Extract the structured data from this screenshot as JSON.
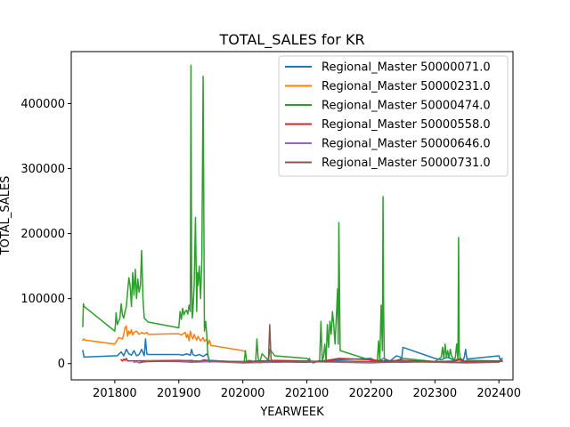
{
  "chart_data": {
    "type": "line",
    "title": "TOTAL_SALES for KR",
    "xlabel": "YEARWEEK",
    "ylabel": "TOTAL_SALES",
    "xlim": [
      201732,
      202422
    ],
    "ylim": [
      -25000,
      480000
    ],
    "xticks": [
      {
        "value": 201800,
        "label": "201800"
      },
      {
        "value": 201900,
        "label": "201900"
      },
      {
        "value": 202000,
        "label": "202000"
      },
      {
        "value": 202100,
        "label": "202100"
      },
      {
        "value": 202200,
        "label": "202200"
      },
      {
        "value": 202300,
        "label": "202300"
      },
      {
        "value": 202400,
        "label": "202400"
      }
    ],
    "yticks": [
      {
        "value": 0,
        "label": "0"
      },
      {
        "value": 100000,
        "label": "100000"
      },
      {
        "value": 200000,
        "label": "200000"
      },
      {
        "value": 300000,
        "label": "300000"
      },
      {
        "value": 400000,
        "label": "400000"
      }
    ],
    "grid": false,
    "legend_position": "top-right",
    "series": [
      {
        "name": "Regional_Master 50000071.0",
        "color": "#1f77b4",
        "x": [
          201750,
          201752,
          201800,
          201804,
          201810,
          201814,
          201818,
          201822,
          201826,
          201830,
          201834,
          201838,
          201842,
          201846,
          201848,
          201850,
          201852,
          201900,
          201906,
          201912,
          201918,
          201920,
          201922,
          201926,
          201932,
          201938,
          201944,
          201946,
          201948,
          201950,
          202000,
          202050,
          202100,
          202104,
          202106,
          202120,
          202150,
          202200,
          202210,
          202220,
          202230,
          202240,
          202246,
          202248,
          202250,
          202300,
          202310,
          202320,
          202330,
          202340,
          202344,
          202346,
          202348,
          202350,
          202400,
          202402,
          202405
        ],
        "y": [
          20000,
          10000,
          12000,
          12000,
          18000,
          12000,
          22000,
          15000,
          13000,
          20000,
          12000,
          14000,
          22000,
          12000,
          38000,
          15000,
          14000,
          14000,
          13000,
          15000,
          13000,
          22000,
          14000,
          12000,
          14000,
          11000,
          15000,
          10000,
          4000,
          5000,
          2000,
          3000,
          2000,
          8000,
          3000,
          4000,
          6000,
          8000,
          3000,
          8000,
          4000,
          12000,
          10000,
          6000,
          25000,
          8000,
          6000,
          10000,
          5000,
          8000,
          5000,
          10000,
          22000,
          7000,
          12000,
          6000,
          8000
        ]
      },
      {
        "name": "Regional_Master 50000231.0",
        "color": "#ff7f0e",
        "x": [
          201750,
          201752,
          201754,
          201800,
          201806,
          201812,
          201814,
          201816,
          201818,
          201820,
          201822,
          201824,
          201826,
          201828,
          201830,
          201834,
          201838,
          201842,
          201846,
          201850,
          201852,
          201900,
          201904,
          201910,
          201912,
          201914,
          201916,
          201918,
          201920,
          201922,
          201924,
          201926,
          201928,
          201930,
          201934,
          201938,
          201940,
          201944,
          201946,
          201948,
          201950,
          202000,
          202004
        ],
        "y": [
          36000,
          38000,
          36000,
          30000,
          40000,
          38000,
          45000,
          55000,
          58000,
          42000,
          50000,
          46000,
          52000,
          44000,
          48000,
          50000,
          45000,
          48000,
          46000,
          48000,
          45000,
          46000,
          44000,
          48000,
          40000,
          45000,
          35000,
          50000,
          42000,
          38000,
          45000,
          40000,
          36000,
          42000,
          35000,
          40000,
          34000,
          38000,
          30000,
          36000,
          28000,
          20000,
          18000
        ]
      },
      {
        "name": "Regional_Master 50000474.0",
        "color": "#2ca02c",
        "x": [
          201750,
          201751,
          201752,
          201800,
          201801,
          201802,
          201804,
          201806,
          201808,
          201810,
          201812,
          201814,
          201816,
          201818,
          201820,
          201822,
          201824,
          201826,
          201828,
          201830,
          201832,
          201834,
          201836,
          201838,
          201840,
          201842,
          201844,
          201846,
          201848,
          201850,
          201852,
          201900,
          201902,
          201904,
          201906,
          201908,
          201910,
          201912,
          201914,
          201916,
          201918,
          201919,
          201920,
          201921,
          201922,
          201924,
          201926,
          201928,
          201929,
          201930,
          201932,
          201934,
          201936,
          201938,
          201940,
          201942,
          201944,
          201945,
          201946,
          201947,
          201948,
          201950,
          202000,
          202002,
          202004,
          202006,
          202010,
          202020,
          202022,
          202024,
          202026,
          202030,
          202040,
          202042,
          202050,
          202100,
          202110,
          202120,
          202122,
          202124,
          202126,
          202128,
          202130,
          202132,
          202134,
          202136,
          202138,
          202140,
          202142,
          202144,
          202146,
          202148,
          202149,
          202150,
          202152,
          202200,
          202210,
          202212,
          202214,
          202216,
          202218,
          202219,
          202220,
          202221,
          202222,
          202224,
          202226,
          202230,
          202240,
          202250,
          202300,
          202310,
          202312,
          202314,
          202316,
          202318,
          202320,
          202322,
          202324,
          202326,
          202330,
          202332,
          202334,
          202336,
          202337,
          202338,
          202340,
          202342,
          202346,
          202350,
          202400,
          202405
        ],
        "y": [
          57000,
          92000,
          88000,
          50000,
          60000,
          78000,
          60000,
          65000,
          70000,
          92000,
          75000,
          70000,
          80000,
          88000,
          110000,
          132000,
          120000,
          88000,
          140000,
          105000,
          145000,
          100000,
          130000,
          110000,
          120000,
          174000,
          100000,
          70000,
          68000,
          66000,
          64000,
          55000,
          80000,
          68000,
          85000,
          75000,
          80000,
          82000,
          76000,
          90000,
          80000,
          459000,
          140000,
          70000,
          80000,
          120000,
          225000,
          80000,
          140000,
          120000,
          150000,
          100000,
          160000,
          442000,
          50000,
          65000,
          40000,
          20000,
          10000,
          5000,
          2000,
          3000,
          2000,
          1000,
          20000,
          3000,
          5000,
          2000,
          38000,
          8000,
          1000,
          15000,
          5000,
          22000,
          12000,
          8000,
          1000,
          5000,
          65000,
          5000,
          10000,
          30000,
          2000,
          60000,
          25000,
          65000,
          45000,
          80000,
          60000,
          30000,
          70000,
          115000,
          30000,
          217000,
          20000,
          5000,
          2000,
          35000,
          5000,
          90000,
          20000,
          257000,
          80000,
          10000,
          5000,
          4000,
          3000,
          2000,
          5000,
          8000,
          3000,
          10000,
          25000,
          8000,
          30000,
          10000,
          20000,
          8000,
          22000,
          12000,
          5000,
          10000,
          30000,
          5000,
          194000,
          20000,
          5000,
          3000,
          2000,
          5000,
          4000,
          3000
        ]
      },
      {
        "name": "Regional_Master 50000558.0",
        "color": "#d62728",
        "x": [
          201810,
          201812,
          201814,
          201816,
          201818,
          201820,
          201900,
          201920,
          202000,
          202050,
          202100,
          202120,
          202150,
          202200,
          202220,
          202250,
          202300,
          202330,
          202340,
          202350,
          202400,
          202405
        ],
        "y": [
          6000,
          4000,
          7000,
          5000,
          8000,
          4000,
          5000,
          4000,
          3000,
          5000,
          4000,
          3000,
          8000,
          6000,
          4000,
          5000,
          3000,
          4000,
          6000,
          3000,
          4000,
          5000
        ]
      },
      {
        "name": "Regional_Master 50000646.0",
        "color": "#9467bd",
        "x": [
          201830,
          201834,
          201838,
          201842,
          201850,
          201900,
          201920,
          201950,
          202000,
          202050,
          202100,
          202150,
          202200,
          202250,
          202300,
          202350,
          202400
        ],
        "y": [
          2000,
          3000,
          1000,
          2000,
          4000,
          3000,
          2000,
          3000,
          1000,
          2000,
          3000,
          2000,
          1000,
          3000,
          2000,
          1000,
          2000
        ]
      },
      {
        "name": "Regional_Master 50000731.0",
        "color": "#8c564b",
        "x": [
          201840,
          201850,
          201900,
          201920,
          201930,
          201940,
          201950,
          202000,
          202010,
          202020,
          202030,
          202040,
          202042,
          202044,
          202046,
          202048,
          202050,
          202100,
          202150,
          202200,
          202250,
          202300,
          202350,
          202400,
          202405
        ],
        "y": [
          2000,
          3000,
          4000,
          5000,
          3000,
          6000,
          4000,
          3000,
          2000,
          4000,
          3000,
          5000,
          60000,
          8000,
          3000,
          4000,
          3000,
          2000,
          4000,
          3000,
          2000,
          3000,
          2000,
          3000,
          4000
        ]
      }
    ]
  }
}
